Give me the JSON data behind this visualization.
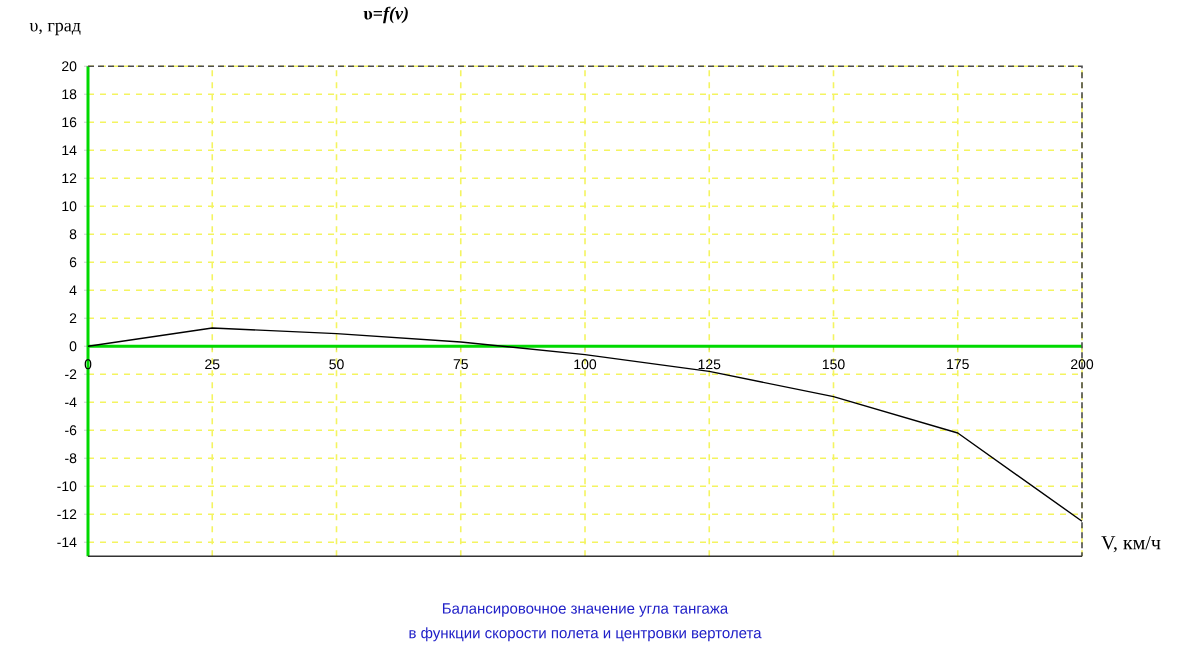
{
  "chart_data": {
    "type": "line",
    "title": "υ=*f(v)*",
    "xlabel": "V, км/ч",
    "ylabel": "υ, град",
    "x": [
      0,
      25,
      50,
      75,
      100,
      125,
      150,
      175,
      200
    ],
    "series": [
      {
        "color": "#000000",
        "values": [
          0,
          1.3,
          0.9,
          0.3,
          -0.6,
          -1.8,
          -3.6,
          -6.2,
          -12.5
        ]
      }
    ],
    "xlim": [
      0,
      200
    ],
    "ylim": [
      -15,
      20
    ],
    "xticks": [
      0,
      25,
      50,
      75,
      100,
      125,
      150,
      175,
      200
    ],
    "yticks": [
      -14,
      -12,
      -10,
      -8,
      -6,
      -4,
      -2,
      0,
      2,
      4,
      6,
      8,
      10,
      12,
      14,
      16,
      18,
      20
    ],
    "grid": true,
    "marker": "none",
    "line_style": "solid",
    "annotations": [
      "Балансировочное значение угла тангажа",
      "в функции скорости полета и центровки вертолета"
    ]
  }
}
